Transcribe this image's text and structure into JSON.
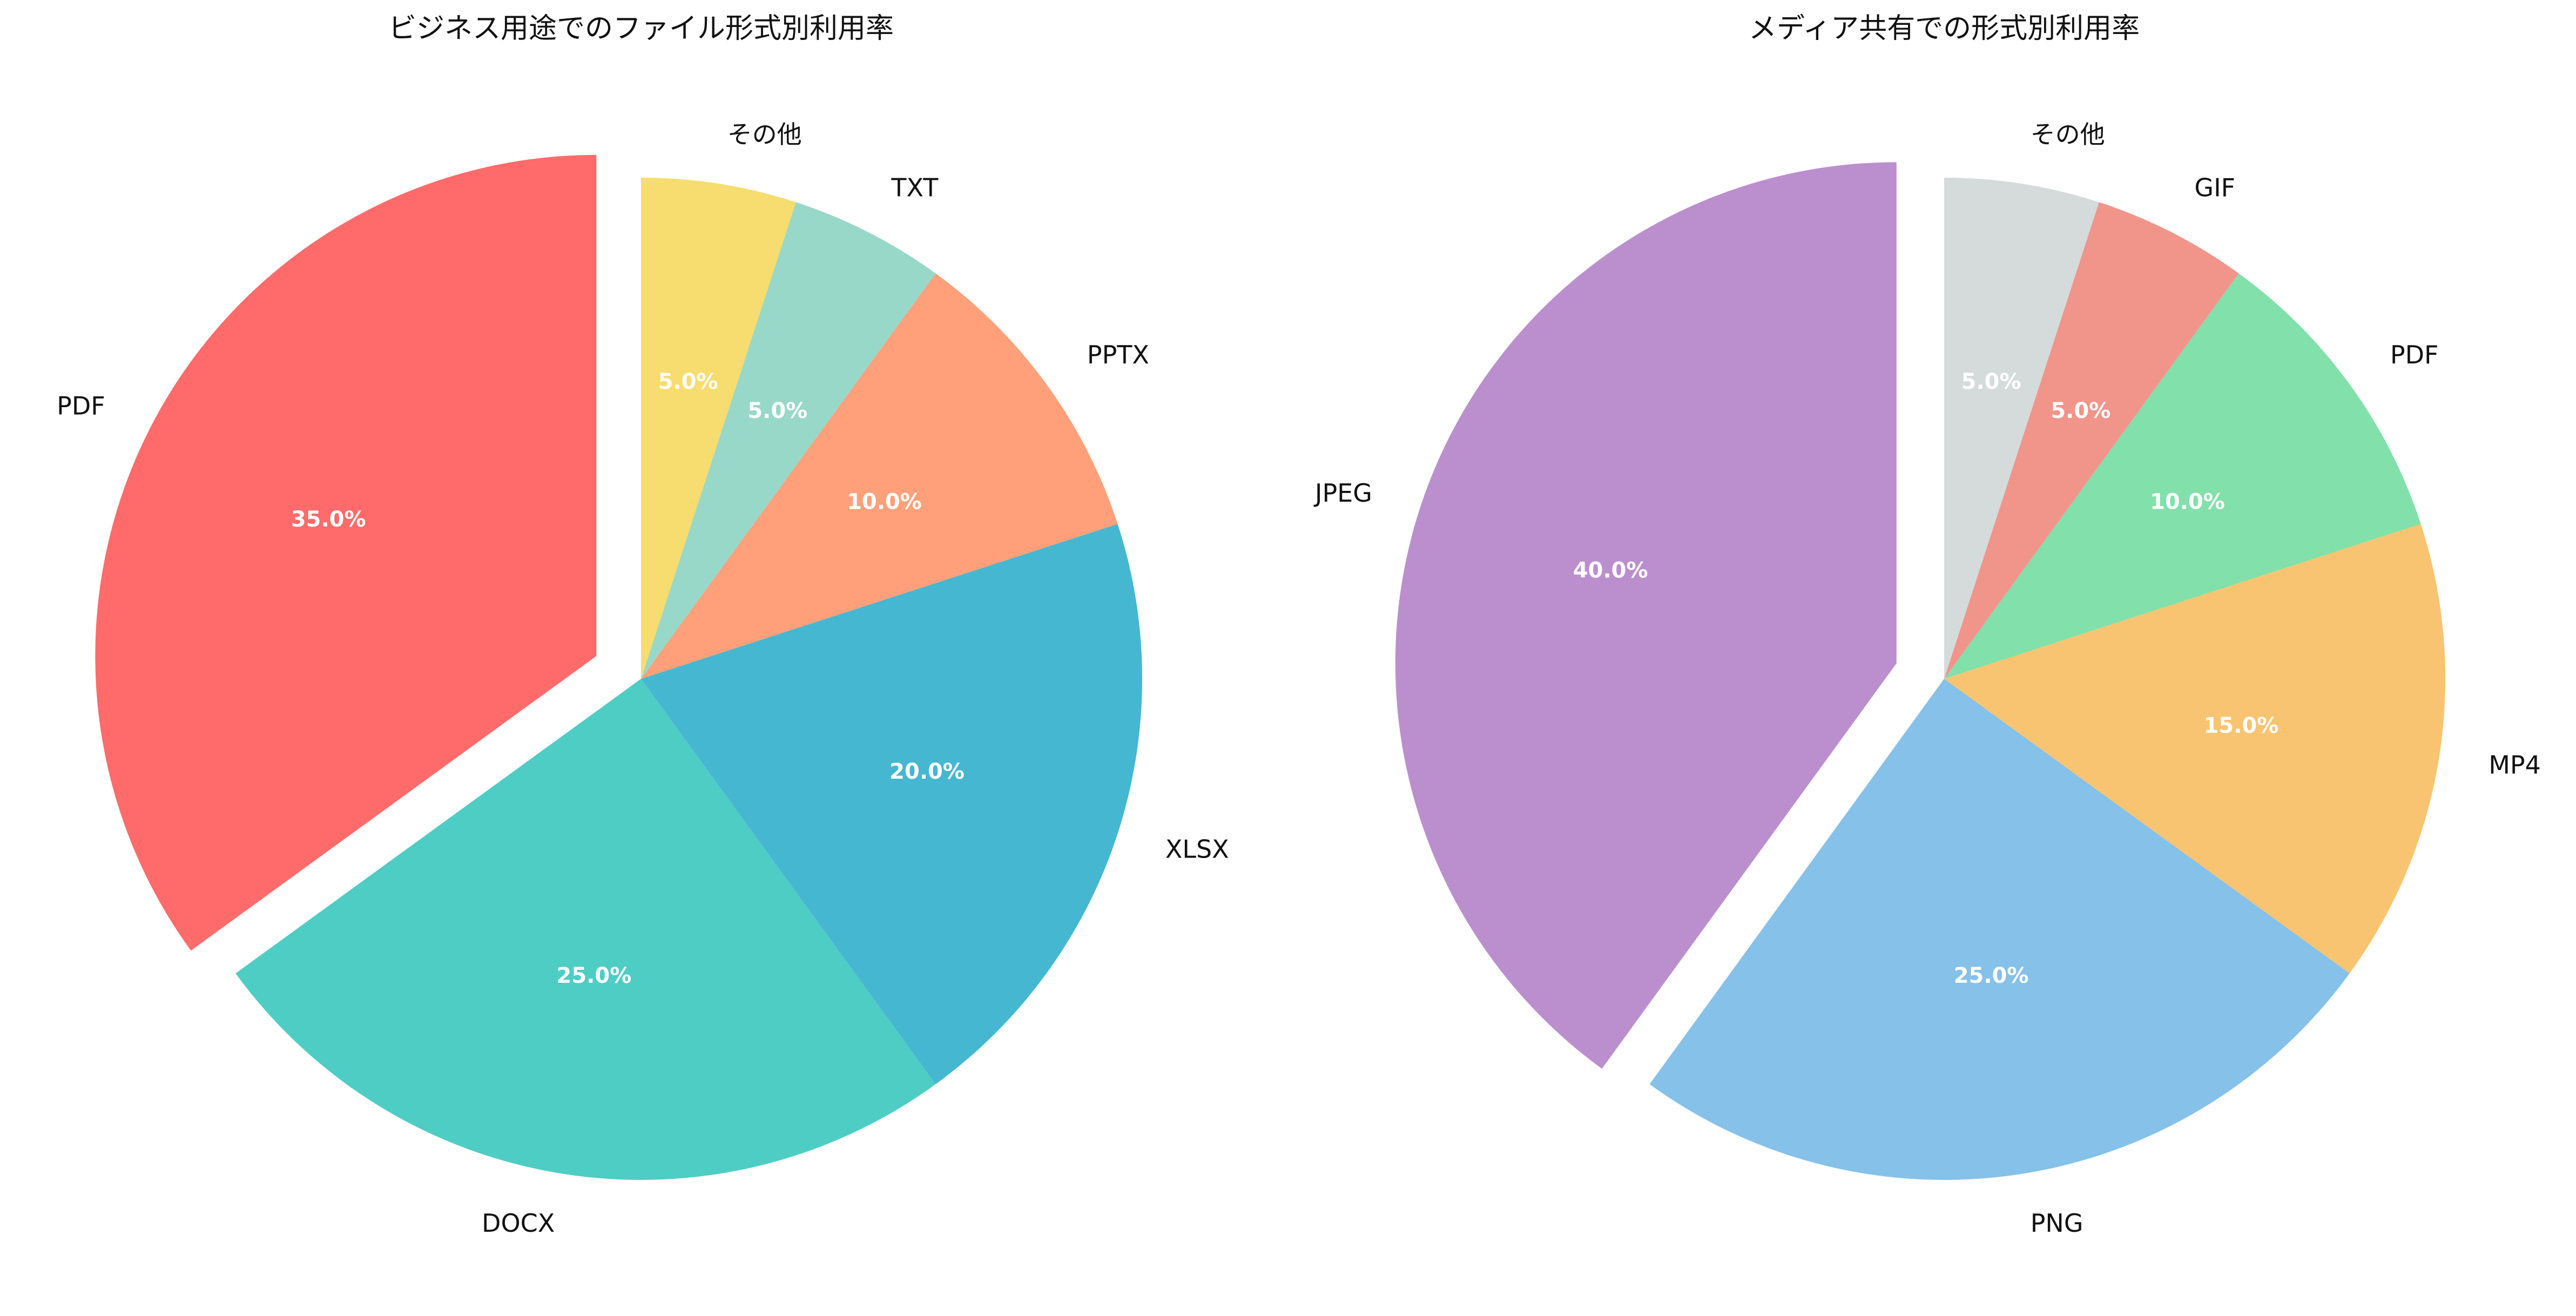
{
  "chart_data": [
    {
      "type": "pie",
      "title": "ビジネス用途でのファイル形式別利用率",
      "categories": [
        "PDF",
        "DOCX",
        "XLSX",
        "PPTX",
        "TXT",
        "その他"
      ],
      "values": [
        35,
        25,
        20,
        10,
        5,
        5
      ],
      "percent_labels": [
        "35.0%",
        "25.0%",
        "20.0%",
        "10.0%",
        "5.0%",
        "5.0%"
      ],
      "colors": [
        "#FF6B6B",
        "#4ECDC4",
        "#45B7D1",
        "#FFA07A",
        "#98D8C8",
        "#F7DC6F"
      ],
      "exploded": [
        "PDF"
      ],
      "start_angle_deg": 90,
      "direction": "counterclockwise"
    },
    {
      "type": "pie",
      "title": "メディア共有での形式別利用率",
      "categories": [
        "JPEG",
        "PNG",
        "MP4",
        "PDF",
        "GIF",
        "その他"
      ],
      "values": [
        40,
        25,
        15,
        10,
        5,
        5
      ],
      "percent_labels": [
        "40.0%",
        "25.0%",
        "15.0%",
        "10.0%",
        "5.0%",
        "5.0%"
      ],
      "colors": [
        "#BB8FCE",
        "#85C1E9",
        "#F8C471",
        "#82E0AA",
        "#F1948A",
        "#D5DBDB"
      ],
      "exploded": [
        "JPEG"
      ],
      "start_angle_deg": 90,
      "direction": "counterclockwise"
    }
  ]
}
